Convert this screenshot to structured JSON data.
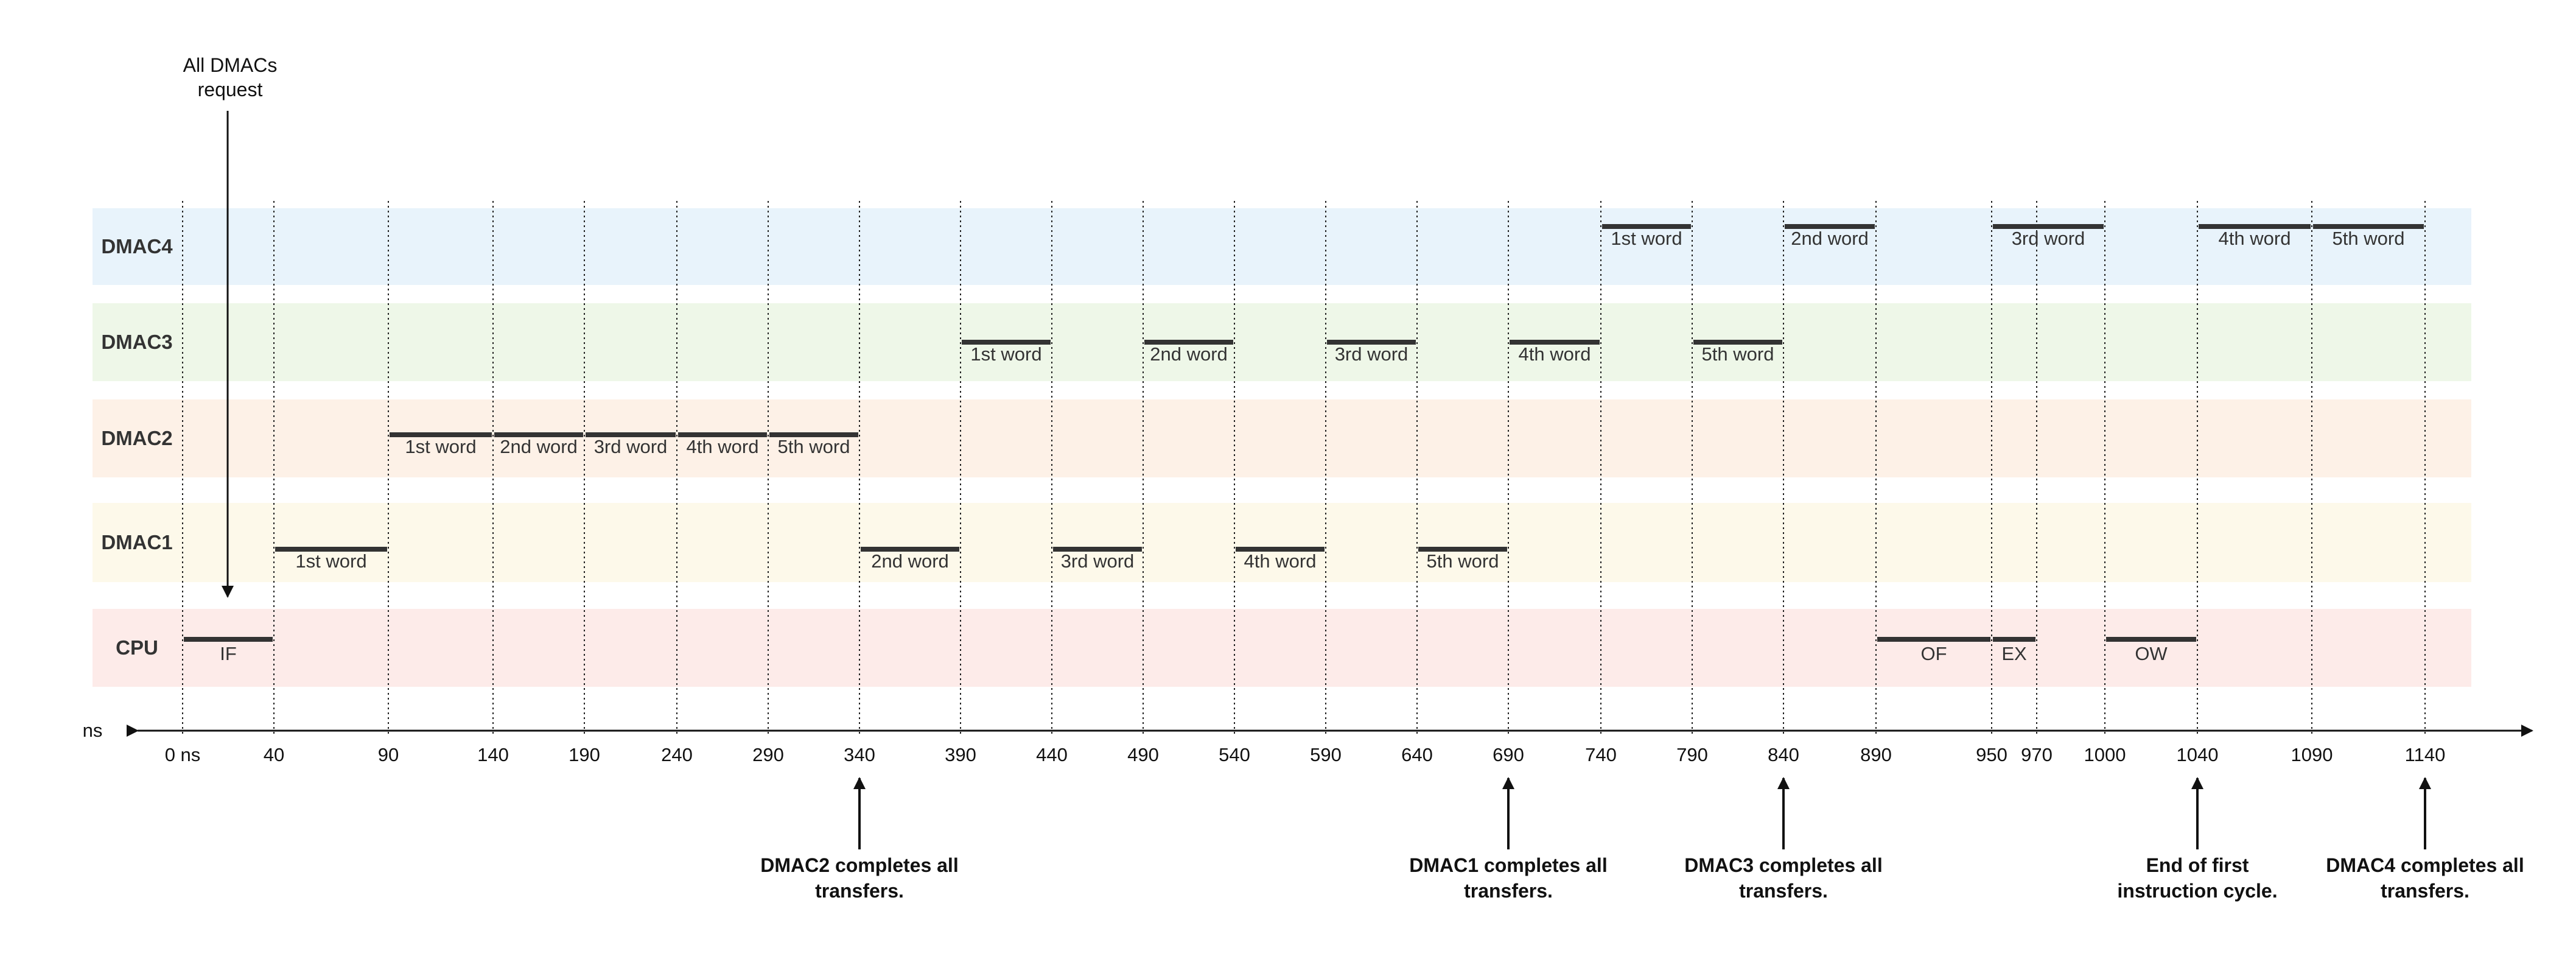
{
  "top_note": [
    "All DMACs",
    "request"
  ],
  "axis": {
    "unit_label": "ns",
    "ticks": [
      {
        "value": 0,
        "label": "0 ns"
      },
      {
        "value": 40,
        "label": "40"
      },
      {
        "value": 90,
        "label": "90"
      },
      {
        "value": 140,
        "label": "140"
      },
      {
        "value": 190,
        "label": "190"
      },
      {
        "value": 240,
        "label": "240"
      },
      {
        "value": 290,
        "label": "290"
      },
      {
        "value": 340,
        "label": "340"
      },
      {
        "value": 390,
        "label": "390"
      },
      {
        "value": 440,
        "label": "440"
      },
      {
        "value": 490,
        "label": "490"
      },
      {
        "value": 540,
        "label": "540"
      },
      {
        "value": 590,
        "label": "590"
      },
      {
        "value": 640,
        "label": "640"
      },
      {
        "value": 690,
        "label": "690"
      },
      {
        "value": 740,
        "label": "740"
      },
      {
        "value": 790,
        "label": "790"
      },
      {
        "value": 840,
        "label": "840"
      },
      {
        "value": 890,
        "label": "890"
      },
      {
        "value": 950,
        "label": "950"
      },
      {
        "value": 970,
        "label": "970"
      },
      {
        "value": 1000,
        "label": "1000"
      },
      {
        "value": 1040,
        "label": "1040"
      },
      {
        "value": 1090,
        "label": "1090"
      },
      {
        "value": 1140,
        "label": "1140"
      }
    ]
  },
  "lanes": [
    {
      "name": "DMAC4",
      "color": "#e8f3fb",
      "segments": [
        {
          "start": 740,
          "end": 790,
          "label": "1st word"
        },
        {
          "start": 840,
          "end": 890,
          "label": "2nd word"
        },
        {
          "start": 950,
          "end": 1000,
          "label": "3rd word"
        },
        {
          "start": 1040,
          "end": 1090,
          "label": "4th word"
        },
        {
          "start": 1090,
          "end": 1140,
          "label": "5th word"
        }
      ]
    },
    {
      "name": "DMAC3",
      "color": "#eef7e8",
      "segments": [
        {
          "start": 390,
          "end": 440,
          "label": "1st word"
        },
        {
          "start": 490,
          "end": 540,
          "label": "2nd word"
        },
        {
          "start": 590,
          "end": 640,
          "label": "3rd word"
        },
        {
          "start": 690,
          "end": 740,
          "label": "4th word"
        },
        {
          "start": 790,
          "end": 840,
          "label": "5th word"
        }
      ]
    },
    {
      "name": "DMAC2",
      "color": "#fdf1e7",
      "segments": [
        {
          "start": 90,
          "end": 140,
          "label": "1st word"
        },
        {
          "start": 140,
          "end": 190,
          "label": "2nd word"
        },
        {
          "start": 190,
          "end": 240,
          "label": "3rd word"
        },
        {
          "start": 240,
          "end": 290,
          "label": "4th word"
        },
        {
          "start": 290,
          "end": 340,
          "label": "5th word"
        }
      ]
    },
    {
      "name": "DMAC1",
      "color": "#fdf9ea",
      "segments": [
        {
          "start": 40,
          "end": 90,
          "label": "1st word"
        },
        {
          "start": 340,
          "end": 390,
          "label": "2nd word"
        },
        {
          "start": 440,
          "end": 490,
          "label": "3rd word"
        },
        {
          "start": 540,
          "end": 590,
          "label": "4th word"
        },
        {
          "start": 640,
          "end": 690,
          "label": "5th word"
        }
      ]
    },
    {
      "name": "CPU",
      "color": "#fdebe9",
      "segments": [
        {
          "start": 0,
          "end": 40,
          "label": "IF"
        },
        {
          "start": 890,
          "end": 950,
          "label": "OF"
        },
        {
          "start": 950,
          "end": 970,
          "label": "EX"
        },
        {
          "start": 1000,
          "end": 1040,
          "label": "OW"
        }
      ]
    }
  ],
  "notes": [
    {
      "at": 340,
      "lines": [
        "DMAC2 completes all",
        "transfers."
      ]
    },
    {
      "at": 690,
      "lines": [
        "DMAC1 completes all",
        "transfers."
      ]
    },
    {
      "at": 840,
      "lines": [
        "DMAC3 completes all",
        "transfers."
      ]
    },
    {
      "at": 1040,
      "lines": [
        "End of first",
        "instruction cycle."
      ]
    },
    {
      "at": 1140,
      "lines": [
        "DMAC4 completes all",
        "transfers."
      ]
    }
  ]
}
